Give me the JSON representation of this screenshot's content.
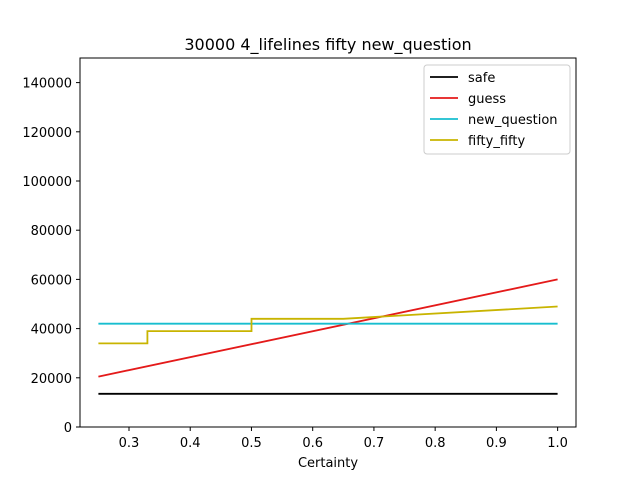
{
  "chart_data": {
    "type": "line",
    "title": "30000 4_lifelines fifty new_question",
    "xlabel": "Certainty",
    "ylabel": "",
    "xlim": [
      0.22,
      1.03
    ],
    "ylim": [
      0,
      150000
    ],
    "xticks": [
      0.3,
      0.4,
      0.5,
      0.6,
      0.7,
      0.8,
      0.9,
      1.0
    ],
    "xtick_labels": [
      "0.3",
      "0.4",
      "0.5",
      "0.6",
      "0.7",
      "0.8",
      "0.9",
      "1.0"
    ],
    "yticks": [
      0,
      20000,
      40000,
      60000,
      80000,
      100000,
      120000,
      140000
    ],
    "ytick_labels": [
      "0",
      "20000",
      "40000",
      "60000",
      "80000",
      "100000",
      "120000",
      "140000"
    ],
    "grid": false,
    "legend_position": "top-right",
    "series": [
      {
        "name": "safe",
        "color": "#000000",
        "x": [
          0.25,
          1.0
        ],
        "y": [
          13500,
          13500
        ]
      },
      {
        "name": "guess",
        "color": "#e41a1a",
        "x": [
          0.25,
          1.0
        ],
        "y": [
          20500,
          60000
        ]
      },
      {
        "name": "new_question",
        "color": "#17becf",
        "x": [
          0.25,
          1.0
        ],
        "y": [
          42000,
          42000
        ]
      },
      {
        "name": "fifty_fifty",
        "color": "#c8b400",
        "x": [
          0.25,
          0.33,
          0.33,
          0.5,
          0.5,
          0.65,
          1.0
        ],
        "y": [
          34000,
          34000,
          39000,
          39000,
          44000,
          44000,
          49000
        ]
      }
    ]
  }
}
